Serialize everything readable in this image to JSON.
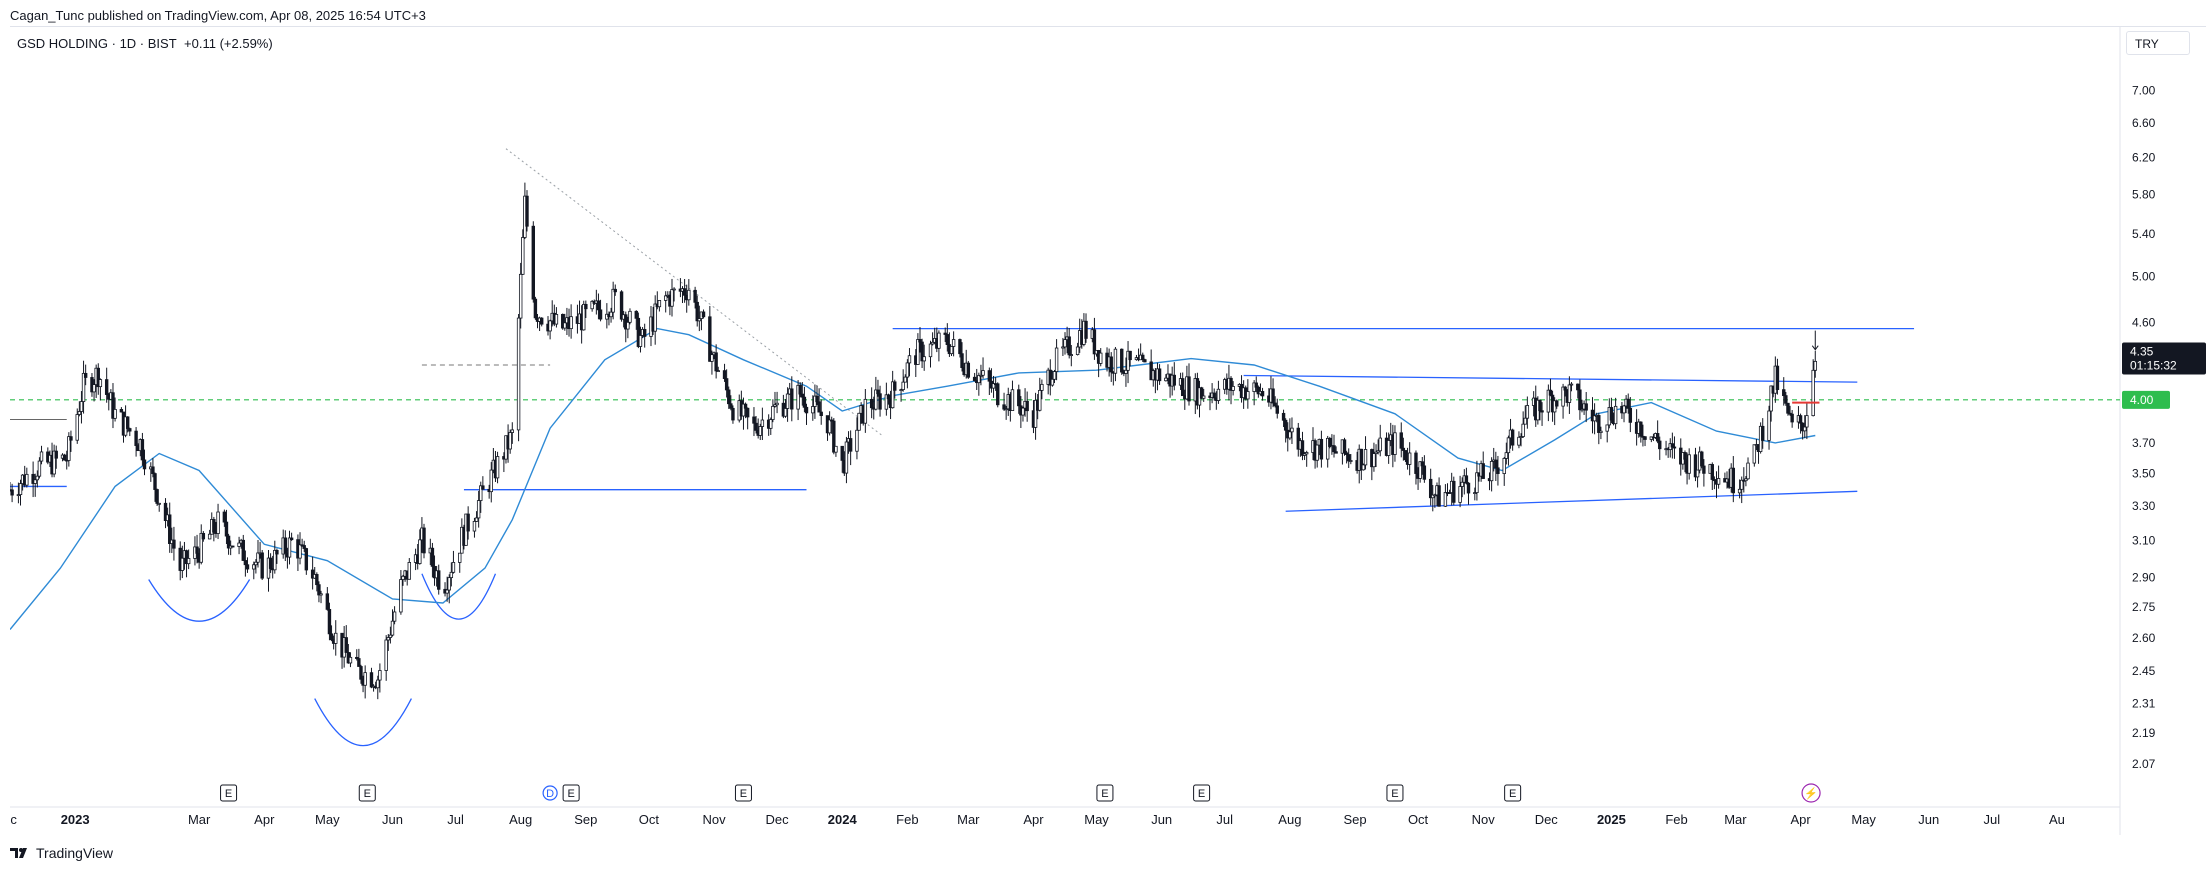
{
  "header": {
    "published_text": "Cagan_Tunc published on TradingView.com, Apr 08, 2025 16:54 UTC+3"
  },
  "legend": {
    "symbol": "GSD HOLDING · 1D · BIST",
    "change": "+0.11 (+2.59%)"
  },
  "price_scale": {
    "currency": "TRY",
    "last_price": "4.35",
    "countdown": "01:15:32",
    "marked_level": "4.00"
  },
  "footer": {
    "brand": "TradingView"
  },
  "colors": {
    "candle": "#131722",
    "ma_line": "#2f8bd6",
    "trend_line": "#2962ff",
    "dashed_level": "#2ebd4e",
    "event_badge": "#131722",
    "dividend_badge": "#2962ff",
    "split_badge": "#9c27b0",
    "red_marker": "#e53935"
  },
  "chart_data": {
    "type": "candlestick",
    "yscale": "log",
    "ylim": [
      2.0,
      7.6
    ],
    "xlim": [
      "2022-12-01",
      "2025-08-31"
    ],
    "ytick_labels": [
      "7.00",
      "6.60",
      "6.20",
      "5.80",
      "5.40",
      "5.00",
      "4.60",
      "4.00",
      "3.70",
      "3.50",
      "3.30",
      "3.10",
      "2.90",
      "2.75",
      "2.60",
      "2.45",
      "2.31",
      "2.19",
      "2.07"
    ],
    "xticks": [
      {
        "label": "ec",
        "date": "2022-12-01",
        "bold": false
      },
      {
        "label": "2023",
        "date": "2023-01-01",
        "bold": true
      },
      {
        "label": "Mar",
        "date": "2023-03-01",
        "bold": false
      },
      {
        "label": "Apr",
        "date": "2023-04-01",
        "bold": false
      },
      {
        "label": "May",
        "date": "2023-05-01",
        "bold": false
      },
      {
        "label": "Jun",
        "date": "2023-06-01",
        "bold": false
      },
      {
        "label": "Jul",
        "date": "2023-07-01",
        "bold": false
      },
      {
        "label": "Aug",
        "date": "2023-08-01",
        "bold": false
      },
      {
        "label": "Sep",
        "date": "2023-09-01",
        "bold": false
      },
      {
        "label": "Oct",
        "date": "2023-10-01",
        "bold": false
      },
      {
        "label": "Nov",
        "date": "2023-11-01",
        "bold": false
      },
      {
        "label": "Dec",
        "date": "2023-12-01",
        "bold": false
      },
      {
        "label": "2024",
        "date": "2024-01-01",
        "bold": true
      },
      {
        "label": "Feb",
        "date": "2024-02-01",
        "bold": false
      },
      {
        "label": "Mar",
        "date": "2024-03-01",
        "bold": false
      },
      {
        "label": "Apr",
        "date": "2024-04-01",
        "bold": false
      },
      {
        "label": "May",
        "date": "2024-05-01",
        "bold": false
      },
      {
        "label": "Jun",
        "date": "2024-06-01",
        "bold": false
      },
      {
        "label": "Jul",
        "date": "2024-07-01",
        "bold": false
      },
      {
        "label": "Aug",
        "date": "2024-08-01",
        "bold": false
      },
      {
        "label": "Sep",
        "date": "2024-09-01",
        "bold": false
      },
      {
        "label": "Oct",
        "date": "2024-10-01",
        "bold": false
      },
      {
        "label": "Nov",
        "date": "2024-11-01",
        "bold": false
      },
      {
        "label": "Dec",
        "date": "2024-12-01",
        "bold": false
      },
      {
        "label": "2025",
        "date": "2025-01-01",
        "bold": true
      },
      {
        "label": "Feb",
        "date": "2025-02-01",
        "bold": false
      },
      {
        "label": "Mar",
        "date": "2025-03-01",
        "bold": false
      },
      {
        "label": "Apr",
        "date": "2025-04-01",
        "bold": false
      },
      {
        "label": "May",
        "date": "2025-05-01",
        "bold": false
      },
      {
        "label": "Jun",
        "date": "2025-06-01",
        "bold": false
      },
      {
        "label": "Jul",
        "date": "2025-07-01",
        "bold": false
      },
      {
        "label": "Au",
        "date": "2025-08-01",
        "bold": false
      }
    ],
    "price_path": [
      [
        "2022-12-01",
        3.4
      ],
      [
        "2022-12-15",
        3.55
      ],
      [
        "2022-12-28",
        3.6
      ],
      [
        "2023-01-05",
        4.1
      ],
      [
        "2023-01-12",
        4.2
      ],
      [
        "2023-01-20",
        3.9
      ],
      [
        "2023-02-01",
        3.7
      ],
      [
        "2023-02-10",
        3.35
      ],
      [
        "2023-02-20",
        2.95
      ],
      [
        "2023-03-01",
        3.05
      ],
      [
        "2023-03-10",
        3.2
      ],
      [
        "2023-03-20",
        3.05
      ],
      [
        "2023-04-01",
        2.95
      ],
      [
        "2023-04-15",
        3.1
      ],
      [
        "2023-04-25",
        2.9
      ],
      [
        "2023-05-05",
        2.6
      ],
      [
        "2023-05-15",
        2.45
      ],
      [
        "2023-05-25",
        2.42
      ],
      [
        "2023-06-05",
        2.85
      ],
      [
        "2023-06-15",
        3.1
      ],
      [
        "2023-06-25",
        2.85
      ],
      [
        "2023-07-05",
        3.15
      ],
      [
        "2023-07-15",
        3.4
      ],
      [
        "2023-07-28",
        3.75
      ],
      [
        "2023-08-03",
        5.7
      ],
      [
        "2023-08-08",
        4.7
      ],
      [
        "2023-08-20",
        4.55
      ],
      [
        "2023-09-01",
        4.65
      ],
      [
        "2023-09-15",
        4.8
      ],
      [
        "2023-09-28",
        4.45
      ],
      [
        "2023-10-08",
        4.8
      ],
      [
        "2023-10-20",
        4.9
      ],
      [
        "2023-11-01",
        4.3
      ],
      [
        "2023-11-10",
        3.95
      ],
      [
        "2023-11-20",
        3.8
      ],
      [
        "2023-12-01",
        3.95
      ],
      [
        "2023-12-12",
        4.05
      ],
      [
        "2023-12-25",
        3.85
      ],
      [
        "2024-01-01",
        3.55
      ],
      [
        "2024-01-12",
        3.95
      ],
      [
        "2024-01-25",
        4.05
      ],
      [
        "2024-02-05",
        4.35
      ],
      [
        "2024-02-20",
        4.45
      ],
      [
        "2024-03-01",
        4.25
      ],
      [
        "2024-03-15",
        4.05
      ],
      [
        "2024-04-01",
        3.9
      ],
      [
        "2024-04-10",
        4.25
      ],
      [
        "2024-04-25",
        4.55
      ],
      [
        "2024-05-05",
        4.3
      ],
      [
        "2024-05-20",
        4.25
      ],
      [
        "2024-06-05",
        4.15
      ],
      [
        "2024-06-20",
        4.05
      ],
      [
        "2024-07-05",
        4.1
      ],
      [
        "2024-07-20",
        4.05
      ],
      [
        "2024-08-05",
        3.7
      ],
      [
        "2024-08-20",
        3.65
      ],
      [
        "2024-09-05",
        3.6
      ],
      [
        "2024-09-20",
        3.7
      ],
      [
        "2024-10-01",
        3.55
      ],
      [
        "2024-10-10",
        3.35
      ],
      [
        "2024-10-25",
        3.45
      ],
      [
        "2024-11-05",
        3.5
      ],
      [
        "2024-11-20",
        3.85
      ],
      [
        "2024-12-01",
        4.0
      ],
      [
        "2024-12-12",
        4.05
      ],
      [
        "2024-12-25",
        3.85
      ],
      [
        "2025-01-05",
        3.95
      ],
      [
        "2025-01-20",
        3.75
      ],
      [
        "2025-02-01",
        3.6
      ],
      [
        "2025-02-15",
        3.55
      ],
      [
        "2025-03-01",
        3.45
      ],
      [
        "2025-03-10",
        3.6
      ],
      [
        "2025-03-20",
        4.15
      ],
      [
        "2025-03-28",
        3.8
      ],
      [
        "2025-04-03",
        3.85
      ],
      [
        "2025-04-08",
        4.35
      ]
    ],
    "moving_average": [
      [
        "2022-12-01",
        2.64
      ],
      [
        "2022-12-25",
        2.95
      ],
      [
        "2023-01-20",
        3.42
      ],
      [
        "2023-02-10",
        3.63
      ],
      [
        "2023-03-01",
        3.52
      ],
      [
        "2023-04-01",
        3.08
      ],
      [
        "2023-05-01",
        2.99
      ],
      [
        "2023-06-01",
        2.79
      ],
      [
        "2023-06-25",
        2.77
      ],
      [
        "2023-07-15",
        2.95
      ],
      [
        "2023-07-28",
        3.22
      ],
      [
        "2023-08-15",
        3.8
      ],
      [
        "2023-09-10",
        4.3
      ],
      [
        "2023-10-05",
        4.55
      ],
      [
        "2023-10-20",
        4.5
      ],
      [
        "2023-11-15",
        4.3
      ],
      [
        "2023-12-15",
        4.1
      ],
      [
        "2024-01-01",
        3.92
      ],
      [
        "2024-01-25",
        4.03
      ],
      [
        "2024-02-20",
        4.1
      ],
      [
        "2024-03-25",
        4.2
      ],
      [
        "2024-05-01",
        4.22
      ],
      [
        "2024-06-15",
        4.31
      ],
      [
        "2024-07-15",
        4.26
      ],
      [
        "2024-08-15",
        4.1
      ],
      [
        "2024-09-20",
        3.9
      ],
      [
        "2024-10-20",
        3.6
      ],
      [
        "2024-11-10",
        3.52
      ],
      [
        "2024-12-05",
        3.72
      ],
      [
        "2024-12-25",
        3.9
      ],
      [
        "2025-01-20",
        3.98
      ],
      [
        "2025-02-20",
        3.78
      ],
      [
        "2025-03-20",
        3.7
      ],
      [
        "2025-04-08",
        3.75
      ]
    ],
    "drawn_lines": [
      {
        "kind": "dotted",
        "from": [
          "2023-07-25",
          6.3
        ],
        "to": [
          "2024-01-20",
          3.75
        ]
      },
      {
        "kind": "solid",
        "from": [
          "2023-12-15",
          3.4
        ],
        "to": [
          "2023-07-05",
          3.4
        ]
      },
      {
        "kind": "solid",
        "from": [
          "2024-01-25",
          4.55
        ],
        "to": [
          "2025-05-25",
          4.55
        ]
      },
      {
        "kind": "solid",
        "from": [
          "2024-07-10",
          4.18
        ],
        "to": [
          "2025-04-28",
          4.13
        ]
      },
      {
        "kind": "solid",
        "from": [
          "2024-07-30",
          3.27
        ],
        "to": [
          "2025-04-28",
          3.39
        ]
      },
      {
        "kind": "solid",
        "from": [
          "2022-12-01",
          3.42
        ],
        "to": [
          "2022-12-28",
          3.42
        ]
      },
      {
        "kind": "dashed-gray",
        "from": [
          "2023-06-15",
          4.26
        ],
        "to": [
          "2023-08-15",
          4.26
        ]
      },
      {
        "kind": "gray",
        "from": [
          "2022-12-01",
          3.86
        ],
        "to": [
          "2022-12-28",
          3.86
        ]
      }
    ],
    "arcs": [
      {
        "from": [
          "2023-02-05",
          2.89
        ],
        "to": [
          "2023-03-25",
          2.89
        ],
        "bottom": 2.68
      },
      {
        "from": [
          "2023-04-25",
          2.33
        ],
        "to": [
          "2023-06-10",
          2.33
        ],
        "bottom": 2.14
      },
      {
        "from": [
          "2023-06-15",
          2.92
        ],
        "to": [
          "2023-07-20",
          2.92
        ],
        "bottom": 2.69
      }
    ],
    "levels": [
      {
        "kind": "dashed-green",
        "value": 4.0
      }
    ],
    "event_badges": [
      {
        "date": "2023-03-15",
        "label": "E"
      },
      {
        "date": "2023-05-20",
        "label": "E"
      },
      {
        "date": "2023-08-15",
        "label": "D"
      },
      {
        "date": "2023-08-25",
        "label": "E"
      },
      {
        "date": "2023-11-15",
        "label": "E"
      },
      {
        "date": "2024-05-05",
        "label": "E"
      },
      {
        "date": "2024-06-20",
        "label": "E"
      },
      {
        "date": "2024-09-20",
        "label": "E"
      },
      {
        "date": "2024-11-15",
        "label": "E"
      },
      {
        "date": "2025-04-06",
        "label": "⚡"
      }
    ]
  }
}
